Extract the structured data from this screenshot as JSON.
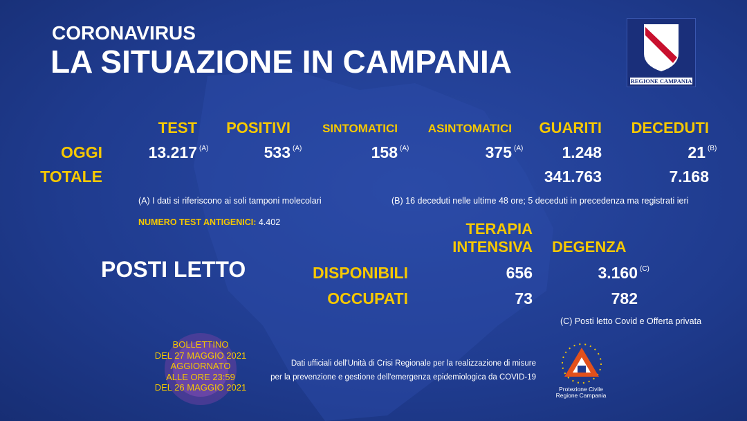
{
  "header": {
    "kicker": "CORONAVIRUS",
    "title": "LA SITUAZIONE IN CAMPANIA"
  },
  "logo": {
    "label": "REGIONE CAMPANIA"
  },
  "daily": {
    "columns": [
      "TEST",
      "POSITIVI",
      "SINTOMATICI",
      "ASINTOMATICI",
      "GUARITI",
      "DECEDUTI"
    ],
    "today": {
      "label": "OGGI",
      "cells": [
        {
          "value": "13.217",
          "note": "(A)"
        },
        {
          "value": "533",
          "note": "(A)"
        },
        {
          "value": "158",
          "note": "(A)"
        },
        {
          "value": "375",
          "note": "(A)"
        },
        {
          "value": "1.248"
        },
        {
          "value": "21",
          "note": "(B)"
        }
      ]
    },
    "total": {
      "label": "TOTALE",
      "guariti": "341.763",
      "deceduti": "7.168"
    },
    "notes": [
      "(A) I dati si riferiscono ai soli tamponi molecolari",
      "(B) 16 deceduti nelle ultime 48 ore; 5 deceduti in precedenza ma registrati ieri"
    ],
    "antigen": {
      "label": "NUMERO TEST ANTIGENICI:",
      "value": "4.402"
    }
  },
  "beds": {
    "title": "POSTI LETTO",
    "columns": [
      "TERAPIA INTENSIVA",
      "DEGENZA"
    ],
    "rows": [
      {
        "label": "DISPONIBILI",
        "intensive": "656",
        "ward": "3.160",
        "note": "(C)"
      },
      {
        "label": "OCCUPATI",
        "intensive": "73",
        "ward": "782"
      }
    ],
    "note": "(C) Posti letto Covid e Offerta privata"
  },
  "bulletin": [
    "BOLLETTINO",
    "DEL 27 MAGGIO 2021",
    "AGGIORNATO",
    "ALLE ORE 23:59",
    "DEL 26 MAGGIO 2021"
  ],
  "source": [
    "Dati ufficiali dell'Unità di Crisi Regionale per la realizzazione di misure",
    "per la prevenzione e gestione dell'emergenza epidemiologica da COVID-19"
  ],
  "civil_protection": [
    "Protezione Civile",
    "Regione Campania"
  ]
}
